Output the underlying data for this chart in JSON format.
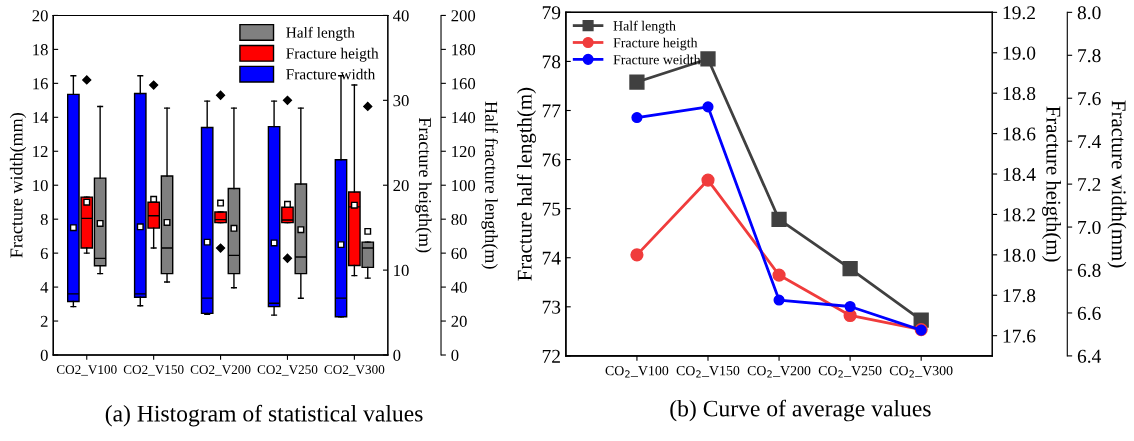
{
  "chart_data": [
    {
      "type": "box",
      "title": "(a) Histogram of statistical values",
      "ylabel": "Fracture width(mm)",
      "y2label": "Fracture heigth(m)",
      "y3label": "Half fracture length(m)",
      "categories": [
        "CO2_V100",
        "CO2_V150",
        "CO2_V200",
        "CO2_V250",
        "CO2_V300"
      ],
      "ylim": [
        0,
        20
      ],
      "yticks": [
        0,
        2,
        4,
        6,
        8,
        10,
        12,
        14,
        16,
        18,
        20
      ],
      "y2lim": [
        0,
        40
      ],
      "y2ticks": [
        0,
        10,
        20,
        30,
        40
      ],
      "y3lim": [
        0,
        200
      ],
      "y3ticks": [
        0,
        20,
        40,
        60,
        80,
        100,
        120,
        140,
        160,
        180,
        200
      ],
      "legend": "top right",
      "series": [
        {
          "name": "Fracture width",
          "color": "#0000ff",
          "boxes": [
            {
              "low": 2.85,
              "q1": 3.15,
              "median": 3.6,
              "q3": 15.35,
              "high": 16.45,
              "mean": 7.5
            },
            {
              "low": 2.9,
              "q1": 3.4,
              "median": 3.6,
              "q3": 15.4,
              "high": 16.45,
              "mean": 7.55
            },
            {
              "low": 2.4,
              "q1": 2.45,
              "median": 3.35,
              "q3": 13.4,
              "high": 14.95,
              "mean": 6.65
            },
            {
              "low": 2.35,
              "q1": 2.85,
              "median": 3.05,
              "q3": 13.45,
              "high": 14.95,
              "mean": 6.6
            },
            {
              "low": 2.25,
              "q1": 2.25,
              "median": 3.35,
              "q3": 11.5,
              "high": 16.45,
              "mean": 6.5
            }
          ]
        },
        {
          "name": "Fracture heigth",
          "color": "#ff0000",
          "axis": "y2",
          "boxes": [
            {
              "low": 12.0,
              "q1": 12.6,
              "median": 16.1,
              "q3": 18.6,
              "high": 18.6,
              "mean": 18.0,
              "outliers": [
                32.4
              ]
            },
            {
              "low": 12.6,
              "q1": 14.95,
              "median": 16.4,
              "q3": 18.0,
              "high": 18.0,
              "mean": 18.35,
              "outliers": [
                31.8
              ]
            },
            {
              "low": 15.6,
              "q1": 15.6,
              "median": 15.95,
              "q3": 16.85,
              "high": 16.85,
              "mean": 17.9,
              "outliers": [
                30.6,
                12.6
              ]
            },
            {
              "low": 15.6,
              "q1": 15.6,
              "median": 15.9,
              "q3": 17.4,
              "high": 17.4,
              "mean": 17.75,
              "outliers": [
                30.0,
                11.4
              ]
            },
            {
              "low": 9.35,
              "q1": 10.55,
              "median": 17.45,
              "q3": 19.2,
              "high": 31.8,
              "mean": 17.65
            }
          ]
        },
        {
          "name": "Half length",
          "color": "#808080",
          "axis": "y3",
          "boxes": [
            {
              "low": 47.9,
              "q1": 52.6,
              "median": 56.9,
              "q3": 104.2,
              "high": 146.4,
              "mean": 77.5
            },
            {
              "low": 43.0,
              "q1": 47.9,
              "median": 63.0,
              "q3": 105.4,
              "high": 145.4,
              "mean": 78.1
            },
            {
              "low": 39.6,
              "q1": 47.9,
              "median": 58.7,
              "q3": 98.1,
              "high": 145.4,
              "mean": 74.6
            },
            {
              "low": 33.4,
              "q1": 47.9,
              "median": 57.7,
              "q3": 100.7,
              "high": 145.4,
              "mean": 73.8
            },
            {
              "low": 45.3,
              "q1": 51.6,
              "median": 63.0,
              "q3": 66.5,
              "high": 66.5,
              "mean": 72.8,
              "outliers": [
                146.4
              ]
            }
          ]
        }
      ]
    },
    {
      "type": "line",
      "title": "(b) Curve of average values",
      "ylabel": "Fracture half length(m)",
      "y2label": "Fracture heigth(m)",
      "y3label": "Fracture width(mm)",
      "categories": [
        "CO$_{2}$_V100",
        "CO$_{2}$_V150",
        "CO$_{2}$_V200",
        "CO$_{2}$_V250",
        "CO$_{2}$_V300"
      ],
      "ylim": [
        72,
        79
      ],
      "yticks": [
        72,
        73,
        74,
        75,
        76,
        77,
        78,
        79
      ],
      "y2lim": [
        17.5,
        19.2
      ],
      "y2ticks": [
        17.6,
        17.8,
        {
          "value": 18,
          "label": "18.0"
        },
        18.2,
        18.4,
        18.6,
        18.8,
        {
          "value": 19,
          "label": "19.0"
        },
        19.2
      ],
      "y3lim": [
        6.4,
        8.0
      ],
      "y3ticks": [
        6.4,
        6.6,
        6.8,
        {
          "value": 7,
          "label": "7.0"
        },
        7.2,
        7.4,
        7.6,
        7.8,
        {
          "value": 8,
          "label": "8.0"
        }
      ],
      "legend": "top left",
      "line_style": "solid",
      "series": [
        {
          "name": "Half length",
          "color": "#404040",
          "marker": "square",
          "values": [
            77.58,
            78.05,
            74.78,
            73.78,
            72.73
          ]
        },
        {
          "name": "Fracture heigth",
          "color": "#f03c3c",
          "marker": "circle",
          "axis": "y2",
          "values": [
            18.0,
            18.37,
            17.9,
            17.7,
            17.63
          ]
        },
        {
          "name": "Fracture weidth",
          "color": "#0000ff",
          "marker": "circle",
          "axis": "y3",
          "values": [
            7.51,
            7.56,
            6.66,
            6.63,
            6.52
          ]
        }
      ]
    }
  ]
}
